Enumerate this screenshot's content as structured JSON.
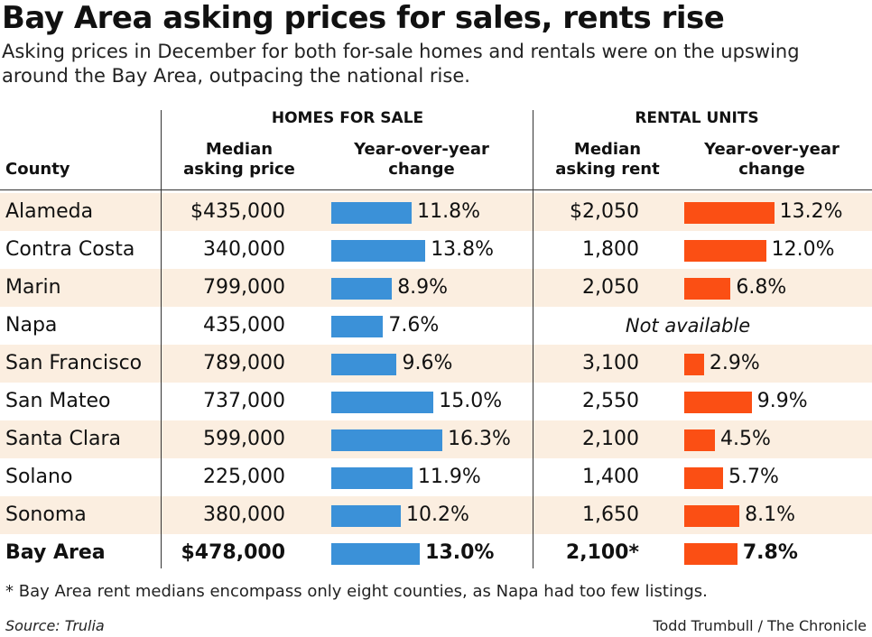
{
  "title": "Bay Area asking prices for sales, rents rise",
  "subtitle": "Asking prices in December for both for-sale homes and rentals were on the upswing around the Bay Area, outpacing the national rise.",
  "headers": {
    "group_sale": "HOMES FOR SALE",
    "group_rent": "RENTAL UNITS",
    "county": "County",
    "median_price": "Median asking price",
    "sale_change": "Year-over-year change",
    "median_rent": "Median asking rent",
    "rent_change": "Year-over-year change"
  },
  "colors": {
    "sale_bar": "#3b91d8",
    "rent_bar": "#fb4f14",
    "row_shade": "#fbeee0"
  },
  "chart_data": {
    "type": "table",
    "title": "Bay Area asking prices for sales, rents rise",
    "columns": [
      "County",
      "Median asking price",
      "Year-over-year change",
      "Median asking rent",
      "Year-over-year change"
    ],
    "rows": [
      {
        "county": "Alameda",
        "price": "$435,000",
        "sale_change": 11.8,
        "sale_label": "11.8%",
        "rent": "$2,050",
        "rent_change": 13.2,
        "rent_label": "13.2%"
      },
      {
        "county": "Contra Costa",
        "price": "340,000",
        "sale_change": 13.8,
        "sale_label": "13.8%",
        "rent": "1,800",
        "rent_change": 12.0,
        "rent_label": "12.0%"
      },
      {
        "county": "Marin",
        "price": "799,000",
        "sale_change": 8.9,
        "sale_label": "8.9%",
        "rent": "2,050",
        "rent_change": 6.8,
        "rent_label": "6.8%"
      },
      {
        "county": "Napa",
        "price": "435,000",
        "sale_change": 7.6,
        "sale_label": "7.6%",
        "rent": null,
        "rent_change": null,
        "rent_label": null,
        "rent_note": "Not available"
      },
      {
        "county": "San Francisco",
        "price": "789,000",
        "sale_change": 9.6,
        "sale_label": "9.6%",
        "rent": "3,100",
        "rent_change": 2.9,
        "rent_label": "2.9%"
      },
      {
        "county": "San Mateo",
        "price": "737,000",
        "sale_change": 15.0,
        "sale_label": "15.0%",
        "rent": "2,550",
        "rent_change": 9.9,
        "rent_label": "9.9%"
      },
      {
        "county": "Santa Clara",
        "price": "599,000",
        "sale_change": 16.3,
        "sale_label": "16.3%",
        "rent": "2,100",
        "rent_change": 4.5,
        "rent_label": "4.5%"
      },
      {
        "county": "Solano",
        "price": "225,000",
        "sale_change": 11.9,
        "sale_label": "11.9%",
        "rent": "1,400",
        "rent_change": 5.7,
        "rent_label": "5.7%"
      },
      {
        "county": "Sonoma",
        "price": "380,000",
        "sale_change": 10.2,
        "sale_label": "10.2%",
        "rent": "1,650",
        "rent_change": 8.1,
        "rent_label": "8.1%"
      },
      {
        "county": "Bay Area",
        "price": "$478,000",
        "sale_change": 13.0,
        "sale_label": "13.0%",
        "rent": "2,100*",
        "rent_change": 7.8,
        "rent_label": "7.8%",
        "total": true
      }
    ]
  },
  "footnote": "* Bay Area rent medians encompass only eight counties, as Napa had too few listings.",
  "source": "Source: Trulia",
  "credit": "Todd Trumbull / The Chronicle"
}
